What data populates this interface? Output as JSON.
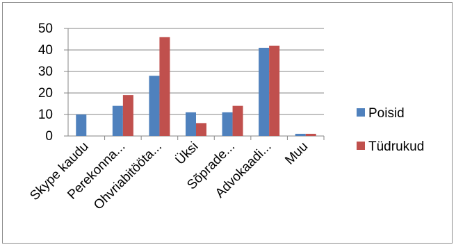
{
  "chart_data": {
    "type": "bar",
    "categories": [
      "Skype kaudu",
      "Perekonna...",
      "Ohvriabitööta...",
      "Üksi",
      "Sõprade...",
      "Advokaadi...",
      "Muu"
    ],
    "series": [
      {
        "name": "Poisid",
        "color": "#4f81bd",
        "values": [
          10,
          14,
          28,
          11,
          11,
          41,
          1
        ]
      },
      {
        "name": "Tüdrukud",
        "color": "#c0504d",
        "values": [
          0,
          19,
          46,
          6,
          14,
          42,
          1
        ]
      }
    ],
    "ylim": [
      0,
      50
    ],
    "yticks": [
      0,
      10,
      20,
      30,
      40,
      50
    ],
    "ytick_labels": [
      "0",
      "10",
      "20",
      "30",
      "40",
      "50"
    ],
    "grid": true,
    "legend_position": "right"
  }
}
